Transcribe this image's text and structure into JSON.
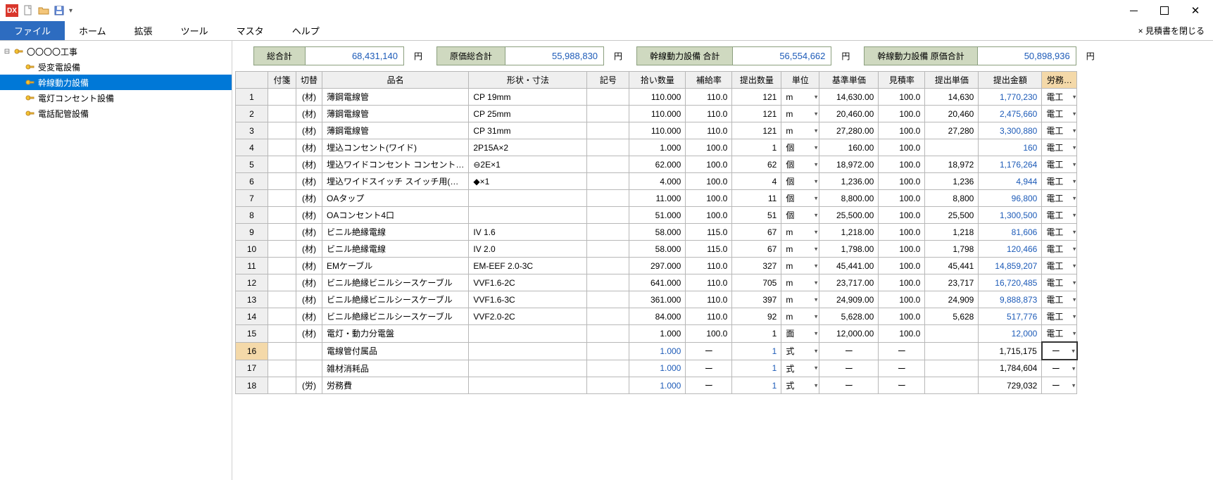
{
  "window": {
    "close_estimate": "× 見積書を閉じる"
  },
  "ribbon": {
    "file": "ファイル",
    "home": "ホーム",
    "ext": "拡張",
    "tool": "ツール",
    "master": "マスタ",
    "help": "ヘルプ"
  },
  "tree": {
    "root": "〇〇〇〇工事",
    "items": [
      "受変電設備",
      "幹線動力設備",
      "電灯コンセント設備",
      "電話配管設備"
    ]
  },
  "summary": {
    "s1_label": "総合計",
    "s1_value": "68,431,140",
    "s2_label": "原価総合計",
    "s2_value": "55,988,830",
    "s3_label": "幹線動力設備 合計",
    "s3_value": "56,554,662",
    "s4_label": "幹線動力設備 原価合計",
    "s4_value": "50,898,936",
    "yen": "円"
  },
  "headers": {
    "fusen": "付箋",
    "toggle": "切替",
    "name": "品名",
    "shape": "形状・寸法",
    "symbol": "記号",
    "qty": "拾い数量",
    "rate": "補給率",
    "subqty": "提出数量",
    "unit": "単位",
    "baseprice": "基準単価",
    "estrate": "見積率",
    "subprice": "提出単価",
    "subamt": "提出金額",
    "labor": "労務…"
  },
  "rows": [
    {
      "no": "1",
      "tg": "(材)",
      "name": "薄鋼電線管",
      "shape": "CP 19mm",
      "sym": "",
      "qty": "110.000",
      "rate": "110.0",
      "sub": "121",
      "unit": "m",
      "bp": "14,630.00",
      "er": "100.0",
      "sp": "14,630",
      "amt": "1,770,230",
      "lab": "電工"
    },
    {
      "no": "2",
      "tg": "(材)",
      "name": "薄鋼電線管",
      "shape": "CP 25mm",
      "sym": "",
      "qty": "110.000",
      "rate": "110.0",
      "sub": "121",
      "unit": "m",
      "bp": "20,460.00",
      "er": "100.0",
      "sp": "20,460",
      "amt": "2,475,660",
      "lab": "電工"
    },
    {
      "no": "3",
      "tg": "(材)",
      "name": "薄鋼電線管",
      "shape": "CP 31mm",
      "sym": "",
      "qty": "110.000",
      "rate": "110.0",
      "sub": "121",
      "unit": "m",
      "bp": "27,280.00",
      "er": "100.0",
      "sp": "27,280",
      "amt": "3,300,880",
      "lab": "電工"
    },
    {
      "no": "4",
      "tg": "(材)",
      "name": "埋込コンセント(ワイド)",
      "shape": "2P15A×2",
      "sym": "",
      "qty": "1.000",
      "rate": "100.0",
      "sub": "1",
      "unit": "個",
      "bp": "160.00",
      "er": "100.0",
      "sp": "",
      "amt": "160",
      "lab": "電工"
    },
    {
      "no": "5",
      "tg": "(材)",
      "name": "埋込ワイドコンセント  コンセント…",
      "shape": "⊖2E×1",
      "sym": "",
      "qty": "62.000",
      "rate": "100.0",
      "sub": "62",
      "unit": "個",
      "bp": "18,972.00",
      "er": "100.0",
      "sp": "18,972",
      "amt": "1,176,264",
      "lab": "電工"
    },
    {
      "no": "6",
      "tg": "(材)",
      "name": "埋込ワイドスイッチ  スイッチ用(…",
      "shape": "◆×1",
      "sym": "",
      "qty": "4.000",
      "rate": "100.0",
      "sub": "4",
      "unit": "個",
      "bp": "1,236.00",
      "er": "100.0",
      "sp": "1,236",
      "amt": "4,944",
      "lab": "電工"
    },
    {
      "no": "7",
      "tg": "(材)",
      "name": "OAタップ",
      "shape": "",
      "sym": "",
      "qty": "11.000",
      "rate": "100.0",
      "sub": "11",
      "unit": "個",
      "bp": "8,800.00",
      "er": "100.0",
      "sp": "8,800",
      "amt": "96,800",
      "lab": "電工"
    },
    {
      "no": "8",
      "tg": "(材)",
      "name": "OAコンセント4口",
      "shape": "",
      "sym": "",
      "qty": "51.000",
      "rate": "100.0",
      "sub": "51",
      "unit": "個",
      "bp": "25,500.00",
      "er": "100.0",
      "sp": "25,500",
      "amt": "1,300,500",
      "lab": "電工"
    },
    {
      "no": "9",
      "tg": "(材)",
      "name": "ビニル絶縁電線",
      "shape": "IV 1.6",
      "sym": "",
      "qty": "58.000",
      "rate": "115.0",
      "sub": "67",
      "unit": "m",
      "bp": "1,218.00",
      "er": "100.0",
      "sp": "1,218",
      "amt": "81,606",
      "lab": "電工"
    },
    {
      "no": "10",
      "tg": "(材)",
      "name": "ビニル絶縁電線",
      "shape": "IV 2.0",
      "sym": "",
      "qty": "58.000",
      "rate": "115.0",
      "sub": "67",
      "unit": "m",
      "bp": "1,798.00",
      "er": "100.0",
      "sp": "1,798",
      "amt": "120,466",
      "lab": "電工"
    },
    {
      "no": "11",
      "tg": "(材)",
      "name": "EMケーブル",
      "shape": "EM-EEF 2.0-3C",
      "sym": "",
      "qty": "297.000",
      "rate": "110.0",
      "sub": "327",
      "unit": "m",
      "bp": "45,441.00",
      "er": "100.0",
      "sp": "45,441",
      "amt": "14,859,207",
      "lab": "電工"
    },
    {
      "no": "12",
      "tg": "(材)",
      "name": "ビニル絶縁ビニルシースケーブル",
      "shape": "VVF1.6-2C",
      "sym": "",
      "qty": "641.000",
      "rate": "110.0",
      "sub": "705",
      "unit": "m",
      "bp": "23,717.00",
      "er": "100.0",
      "sp": "23,717",
      "amt": "16,720,485",
      "lab": "電工"
    },
    {
      "no": "13",
      "tg": "(材)",
      "name": "ビニル絶縁ビニルシースケーブル",
      "shape": "VVF1.6-3C",
      "sym": "",
      "qty": "361.000",
      "rate": "110.0",
      "sub": "397",
      "unit": "m",
      "bp": "24,909.00",
      "er": "100.0",
      "sp": "24,909",
      "amt": "9,888,873",
      "lab": "電工"
    },
    {
      "no": "14",
      "tg": "(材)",
      "name": "ビニル絶縁ビニルシースケーブル",
      "shape": "VVF2.0-2C",
      "sym": "",
      "qty": "84.000",
      "rate": "110.0",
      "sub": "92",
      "unit": "m",
      "bp": "5,628.00",
      "er": "100.0",
      "sp": "5,628",
      "amt": "517,776",
      "lab": "電工"
    },
    {
      "no": "15",
      "tg": "(材)",
      "name": "電灯・動力分電盤",
      "shape": "",
      "sym": "",
      "qty": "1.000",
      "rate": "100.0",
      "sub": "1",
      "unit": "面",
      "bp": "12,000.00",
      "er": "100.0",
      "sp": "",
      "amt": "12,000",
      "lab": "電工"
    },
    {
      "no": "16",
      "tg": "",
      "name": "電線管付属品",
      "shape": "",
      "sym": "",
      "qty": "1.000",
      "qtyblue": true,
      "rate": "ー",
      "sub": "1",
      "subblue": true,
      "unit": "式",
      "bp": "ー",
      "er": "ー",
      "sp": "",
      "amt": "1,715,175",
      "amtblack": true,
      "lab": "ー",
      "dash": true,
      "sel": true
    },
    {
      "no": "17",
      "tg": "",
      "name": "雑材消耗品",
      "shape": "",
      "sym": "",
      "qty": "1.000",
      "qtyblue": true,
      "rate": "ー",
      "sub": "1",
      "subblue": true,
      "unit": "式",
      "bp": "ー",
      "er": "ー",
      "sp": "",
      "amt": "1,784,604",
      "amtblack": true,
      "lab": "ー",
      "dash": true
    },
    {
      "no": "18",
      "tg": "(労)",
      "name": "労務費",
      "shape": "",
      "sym": "",
      "qty": "1.000",
      "qtyblue": true,
      "rate": "ー",
      "sub": "1",
      "subblue": true,
      "unit": "式",
      "bp": "ー",
      "er": "ー",
      "sp": "",
      "amt": "729,032",
      "amtblack": true,
      "lab": "ー",
      "dash": true
    }
  ]
}
